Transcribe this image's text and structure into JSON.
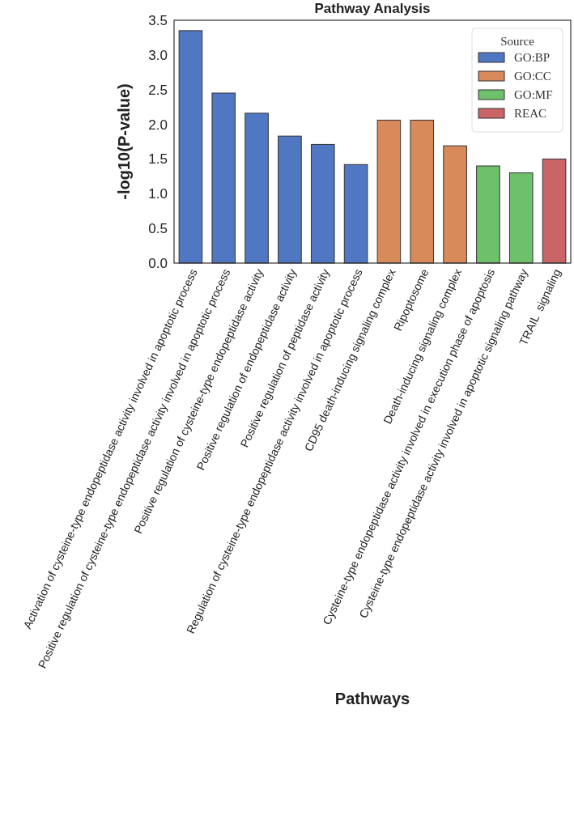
{
  "chart_data": {
    "type": "bar",
    "title": "Pathway Analysis",
    "xlabel": "Pathways",
    "ylabel": "-log10(P-value)",
    "legend_title": "Source",
    "categories": [
      "Activation of cysteine-type endopeptidase activity involved in apoptotic process",
      "Positive regulation of cysteine-type endopeptidase activity involved in apoptotic process",
      "Positive regulation of cysteine-type endopeptidase activity",
      "Positive regulation of endopeptidase activity",
      "Positive regulation of peptidase activity",
      "Regulation of cysteine-type endopeptidase activity involved in apoptotic process",
      "CD95 death-inducing signaling complex",
      "Ripoptosome",
      "Death-inducing signaling complex",
      "Cysteine-type endopeptidase activity involved in execution phase of apoptosis",
      "Cysteine-type endopeptidase activity involved in apoptotic signaling pathway",
      "TRAIL  signaling"
    ],
    "series": [
      {
        "name": "GO:BP",
        "color": "#5077c2",
        "values": [
          3.35,
          2.45,
          2.16,
          1.83,
          1.71,
          1.42,
          null,
          null,
          null,
          null,
          null,
          null
        ]
      },
      {
        "name": "GO:CC",
        "color": "#d98a5a",
        "values": [
          null,
          null,
          null,
          null,
          null,
          null,
          2.06,
          2.06,
          1.69,
          null,
          null,
          null
        ]
      },
      {
        "name": "GO:MF",
        "color": "#6cc16a",
        "values": [
          null,
          null,
          null,
          null,
          null,
          null,
          null,
          null,
          null,
          1.4,
          1.3,
          null
        ]
      },
      {
        "name": "REAC",
        "color": "#c96467",
        "values": [
          null,
          null,
          null,
          null,
          null,
          null,
          null,
          null,
          null,
          null,
          null,
          1.5
        ]
      }
    ],
    "ylim": [
      0,
      3.5
    ],
    "yticks": [
      {
        "value": 0,
        "label": "0.0"
      },
      {
        "value": 0.5,
        "label": "0.5"
      },
      {
        "value": 1,
        "label": "1.0"
      },
      {
        "value": 1.5,
        "label": "1.5"
      },
      {
        "value": 2,
        "label": "2.0"
      },
      {
        "value": 2.5,
        "label": "2.5"
      },
      {
        "value": 3,
        "label": "3.0"
      },
      {
        "value": 3.5,
        "label": "3.5"
      }
    ],
    "grid": false,
    "legend": "top right"
  }
}
